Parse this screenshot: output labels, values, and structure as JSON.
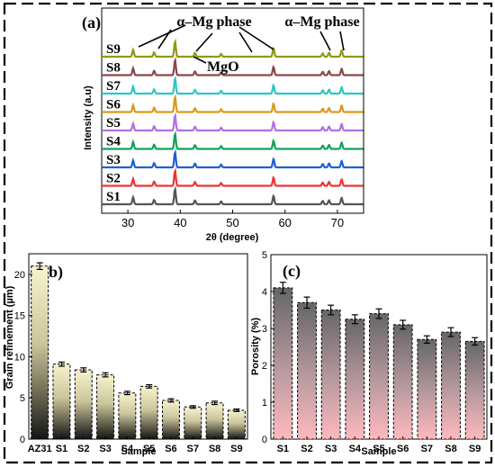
{
  "chart_data": [
    {
      "type": "line",
      "panel_label": "(a)",
      "xlabel": "2θ (degree)",
      "ylabel": "Intensity (a.u)",
      "xlim": [
        25,
        75
      ],
      "xticks": [
        30,
        40,
        50,
        60,
        70
      ],
      "grid": false,
      "peaks_2theta": [
        31.0,
        35.0,
        39.0,
        42.8,
        47.8,
        57.8,
        67.2,
        68.4,
        70.8
      ],
      "peak_relative_heights": [
        0.45,
        0.28,
        1.0,
        0.25,
        0.18,
        0.55,
        0.22,
        0.26,
        0.42
      ],
      "series": [
        {
          "name": "S1",
          "color": "#555555"
        },
        {
          "name": "S2",
          "color": "#ee3535"
        },
        {
          "name": "S3",
          "color": "#1f5fd6"
        },
        {
          "name": "S4",
          "color": "#13a25a"
        },
        {
          "name": "S5",
          "color": "#b46ee2"
        },
        {
          "name": "S6",
          "color": "#d99a1a"
        },
        {
          "name": "S7",
          "color": "#2ec6c6"
        },
        {
          "name": "S8",
          "color": "#8a4848"
        },
        {
          "name": "S9",
          "color": "#8f9a14"
        }
      ],
      "annotations": [
        "α–Mg phase",
        "α–Mg phase",
        "MgO"
      ]
    },
    {
      "type": "bar",
      "panel_label": "(b)",
      "categories": [
        "AZ31",
        "S1",
        "S2",
        "S3",
        "S4",
        "S5",
        "S6",
        "S7",
        "S8",
        "S9"
      ],
      "values": [
        21.0,
        9.1,
        8.4,
        7.8,
        5.6,
        6.4,
        4.7,
        3.9,
        4.4,
        3.5
      ],
      "errors": [
        0.4,
        0.25,
        0.25,
        0.25,
        0.2,
        0.2,
        0.2,
        0.15,
        0.2,
        0.15
      ],
      "xlabel": "Sample",
      "ylabel": "Grain refinement (µm)",
      "ylim": [
        0,
        22.5
      ],
      "yticks": [
        0,
        5,
        10,
        15,
        20
      ],
      "grid": false
    },
    {
      "type": "bar",
      "panel_label": "(c)",
      "categories": [
        "S1",
        "S2",
        "S3",
        "S4",
        "S5",
        "S6",
        "S7",
        "S8",
        "S9"
      ],
      "values": [
        4.1,
        3.7,
        3.5,
        3.25,
        3.4,
        3.1,
        2.7,
        2.9,
        2.65
      ],
      "errors": [
        0.15,
        0.15,
        0.13,
        0.12,
        0.13,
        0.12,
        0.1,
        0.12,
        0.1
      ],
      "xlabel": "Sample",
      "ylabel": "Porosity (%)",
      "ylim": [
        0,
        5
      ],
      "yticks": [
        0,
        1,
        2,
        3,
        4,
        5
      ],
      "grid": false
    }
  ]
}
